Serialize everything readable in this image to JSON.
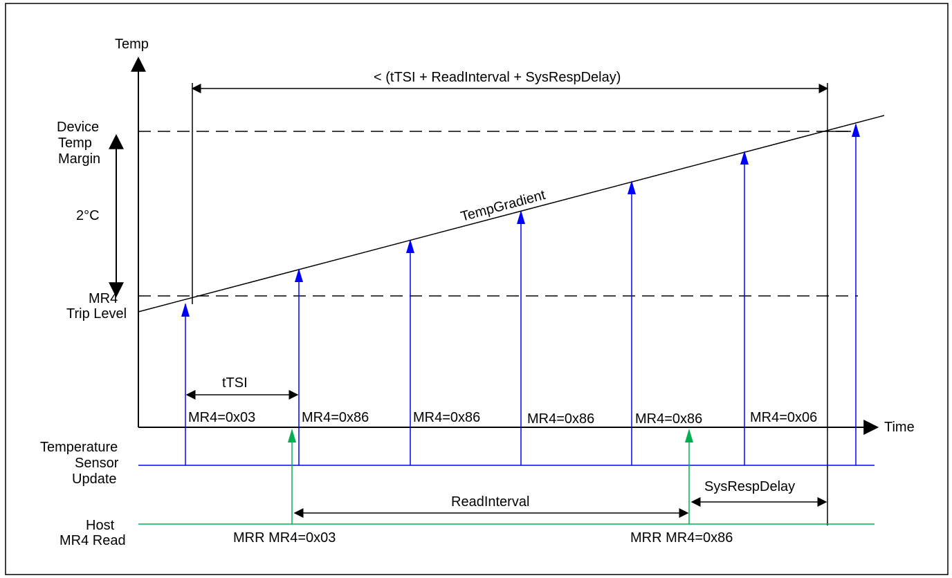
{
  "colors": {
    "sensor": "#0000ff",
    "host": "#00b050",
    "line": "#000000",
    "background": "#ffffff"
  },
  "axes": {
    "y_label": "Temp",
    "x_label": "Time"
  },
  "levels": {
    "margin_label_lines": [
      "Device",
      "Temp",
      "Margin"
    ],
    "trip_label_lines": [
      "MR4",
      "Trip Level"
    ],
    "delta_label": "2°C"
  },
  "gradient_label": "TempGradient",
  "span_label": "< (tTSI + ReadInterval + SysRespDelay)",
  "ttsi_label": "tTSI",
  "mr4_values": [
    "MR4=0x03",
    "MR4=0x86",
    "MR4=0x86",
    "MR4=0x86",
    "MR4=0x86",
    "MR4=0x06"
  ],
  "sensor_row": {
    "label_lines": [
      "Temperature",
      "Sensor",
      "Update"
    ]
  },
  "host_row": {
    "label_lines": [
      "Host",
      "MR4 Read"
    ],
    "reads": [
      "MRR MR4=0x03",
      "MRR MR4=0x86"
    ]
  },
  "read_interval_label": "ReadInterval",
  "sys_resp_delay_label": "SysRespDelay"
}
